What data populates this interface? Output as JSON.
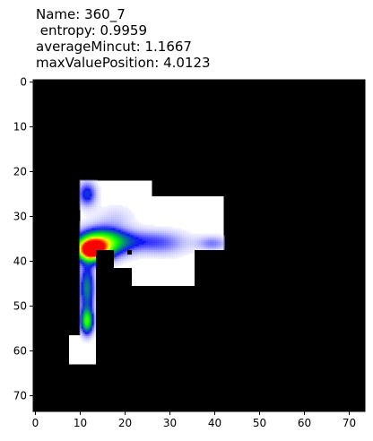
{
  "title_lines": [
    "Name: 360_7",
    " entropy: 0.9959",
    "averageMincut: 1.1667",
    "maxValuePosition: 4.0123"
  ],
  "chart_data": {
    "type": "heatmap",
    "xlim": [
      -0.5,
      73.5
    ],
    "ylim": [
      73.5,
      -0.5
    ],
    "x_ticks": [
      0,
      10,
      20,
      30,
      40,
      50,
      60,
      70
    ],
    "y_ticks": [
      0,
      10,
      20,
      30,
      40,
      50,
      60,
      70
    ],
    "background_color": "#000000",
    "open_color": "#ffffff",
    "open_regions": [
      {
        "x": [
          10,
          26
        ],
        "y": [
          22,
          32
        ]
      },
      {
        "x": [
          10,
          42
        ],
        "y": [
          32,
          37
        ]
      },
      {
        "x": [
          26,
          42
        ],
        "y": [
          25.5,
          32
        ]
      },
      {
        "x": [
          21.5,
          35.5
        ],
        "y": [
          37,
          45.5
        ]
      },
      {
        "x": [
          35.5,
          42
        ],
        "y": [
          37,
          37.5
        ]
      },
      {
        "x": [
          10,
          13.5
        ],
        "y": [
          37,
          63
        ]
      },
      {
        "x": [
          7.5,
          10
        ],
        "y": [
          56.5,
          63
        ]
      },
      {
        "x": [
          13.5,
          21.5
        ],
        "y": [
          37,
          41.5
        ]
      },
      {
        "x": [
          21.5,
          35.5
        ],
        "y": [
          37,
          45.5
        ]
      }
    ],
    "wall_cutouts": [
      {
        "x": [
          13.5,
          17.5
        ],
        "y": [
          37.5,
          63
        ]
      },
      {
        "x": [
          17.5,
          21.5
        ],
        "y": [
          41.5,
          63
        ]
      },
      {
        "x": [
          20.5,
          21.5
        ],
        "y": [
          37.5,
          38.5
        ]
      }
    ],
    "hotspots": [
      {
        "x": 12.5,
        "y": 37.5,
        "sx": 2.2,
        "sy": 1.6,
        "peak": 1.0
      },
      {
        "x": 14.5,
        "y": 36.0,
        "sx": 3.6,
        "sy": 2.4,
        "peak": 0.55
      },
      {
        "x": 11.5,
        "y": 46.0,
        "sx": 1.2,
        "sy": 4.0,
        "peak": 0.4
      },
      {
        "x": 11.5,
        "y": 53.5,
        "sx": 1.0,
        "sy": 2.0,
        "peak": 0.55
      },
      {
        "x": 11.5,
        "y": 25.0,
        "sx": 1.5,
        "sy": 2.0,
        "peak": 0.3
      },
      {
        "x": 20.0,
        "y": 35.5,
        "sx": 6.0,
        "sy": 1.8,
        "peak": 0.22
      },
      {
        "x": 29.0,
        "y": 36.0,
        "sx": 4.0,
        "sy": 2.0,
        "peak": 0.14
      },
      {
        "x": 39.5,
        "y": 36.0,
        "sx": 2.5,
        "sy": 1.2,
        "peak": 0.18
      },
      {
        "x": 18.0,
        "y": 30.0,
        "sx": 3.0,
        "sy": 2.0,
        "peak": 0.08
      }
    ],
    "colormap": [
      "#ffffff",
      "#1010ff",
      "#00ff00",
      "#ffff00",
      "#ff0000"
    ],
    "grid": false,
    "legend": "none"
  }
}
